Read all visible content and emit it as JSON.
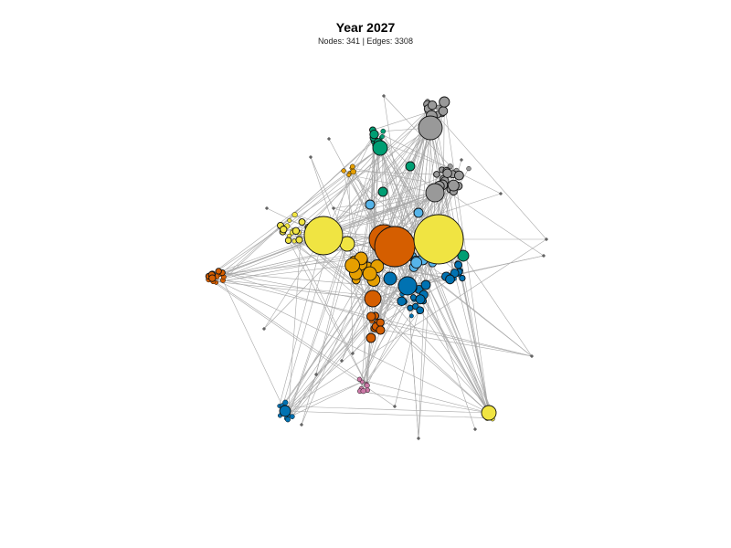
{
  "header": {
    "title": "Year 2027",
    "subtitle": "Nodes: 341 | Edges: 3308"
  },
  "palette": {
    "yellow": "#f0e442",
    "vermillion": "#d55e00",
    "orange": "#e69f00",
    "green": "#009e73",
    "grey": "#999999",
    "skyblue": "#56b4e9",
    "blue": "#0072b2",
    "pink": "#cc79a7",
    "edge": "#a8a8a8",
    "outline": "#111111"
  }
}
